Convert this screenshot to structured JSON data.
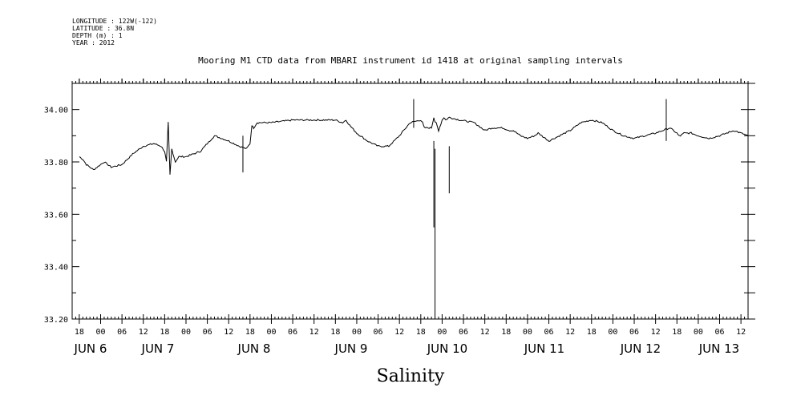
{
  "meta": {
    "longitude": "LONGITUDE : 122W(-122)",
    "latitude": "LATITUDE : 36.8N",
    "depth": "DEPTH (m) : 1",
    "year": "YEAR : 2012"
  },
  "chart_data": {
    "type": "line",
    "title": "Mooring M1 CTD data from MBARI instrument id 1418 at original sampling intervals",
    "xlabel": "Salinity",
    "ylabel": "",
    "ylim": [
      33.2,
      34.1
    ],
    "xlim_hours_from_jun6_00": [
      -8,
      182
    ],
    "y_ticks": [
      "33.20",
      "33.40",
      "33.60",
      "33.80",
      "34.00"
    ],
    "hour_tick_labels": [
      "18",
      "00",
      "06",
      "12",
      "18",
      "00",
      "06",
      "12",
      "18",
      "00",
      "06",
      "12",
      "18",
      "00",
      "06",
      "12",
      "18",
      "00",
      "06",
      "12",
      "18",
      "00",
      "06",
      "12",
      "18",
      "00",
      "06",
      "12",
      "18",
      "00",
      "06",
      "12"
    ],
    "day_labels": [
      "JUN  6",
      "JUN  7",
      "JUN  8",
      "JUN  9",
      "JUN 10",
      "JUN 11",
      "JUN 12",
      "JUN 13"
    ],
    "grid": false,
    "series": [
      {
        "x_dates": [
          "2012-06-05T18:00",
          "2012-06-05T19:00",
          "2012-06-05T20:00",
          "2012-06-05T21:00",
          "2012-06-05T22:00",
          "2012-06-05T23:00",
          "2012-06-06T00:00",
          "2012-06-06T01:00",
          "2012-06-06T02:00",
          "2012-06-06T03:00",
          "2012-06-06T06:00",
          "2012-06-06T09:00",
          "2012-06-06T12:00",
          "2012-06-06T15:00",
          "2012-06-06T17:00",
          "2012-06-06T18:00",
          "2012-06-06T18:30",
          "2012-06-06T19:00",
          "2012-06-06T19:30",
          "2012-06-06T20:00",
          "2012-06-06T21:00",
          "2012-06-06T22:00",
          "2012-06-07T00:00",
          "2012-06-07T04:00",
          "2012-06-07T06:00",
          "2012-06-07T08:00",
          "2012-06-07T10:00",
          "2012-06-07T12:00",
          "2012-06-07T15:00",
          "2012-06-07T17:00",
          "2012-06-07T18:00",
          "2012-06-07T18:30",
          "2012-06-07T19:00",
          "2012-06-07T20:00",
          "2012-06-08T00:00",
          "2012-06-08T06:00",
          "2012-06-08T12:00",
          "2012-06-08T17:00",
          "2012-06-08T18:00",
          "2012-06-08T20:00",
          "2012-06-08T21:00",
          "2012-06-08T22:00",
          "2012-06-09T00:00",
          "2012-06-09T03:00",
          "2012-06-09T06:00",
          "2012-06-09T09:00",
          "2012-06-09T12:00",
          "2012-06-09T15:00",
          "2012-06-09T18:00",
          "2012-06-09T18:30",
          "2012-06-09T19:00",
          "2012-06-09T21:00",
          "2012-06-09T21:20",
          "2012-06-09T21:40",
          "2012-06-09T22:00",
          "2012-06-09T22:20",
          "2012-06-09T23:00",
          "2012-06-10T00:00",
          "2012-06-10T00:30",
          "2012-06-10T01:00",
          "2012-06-10T02:00",
          "2012-06-10T05:00",
          "2012-06-10T09:00",
          "2012-06-10T12:00",
          "2012-06-10T14:00",
          "2012-06-10T15:00",
          "2012-06-10T16:00",
          "2012-06-10T17:00",
          "2012-06-10T19:00",
          "2012-06-10T20:00",
          "2012-06-10T21:00",
          "2012-06-10T22:00",
          "2012-06-11T00:00",
          "2012-06-11T02:00",
          "2012-06-11T03:00",
          "2012-06-11T04:00",
          "2012-06-11T06:00",
          "2012-06-11T09:00",
          "2012-06-11T12:00",
          "2012-06-11T15:00",
          "2012-06-11T18:00",
          "2012-06-11T21:00",
          "2012-06-12T00:00",
          "2012-06-12T03:00",
          "2012-06-12T06:00",
          "2012-06-12T09:00",
          "2012-06-12T12:00",
          "2012-06-12T14:00",
          "2012-06-12T16:00",
          "2012-06-12T17:00",
          "2012-06-12T18:00",
          "2012-06-12T18:30",
          "2012-06-12T19:00",
          "2012-06-12T20:00",
          "2012-06-12T22:00",
          "2012-06-13T00:00",
          "2012-06-13T03:00",
          "2012-06-13T06:00",
          "2012-06-13T08:00",
          "2012-06-13T10:00",
          "2012-06-13T12:00",
          "2012-06-13T14:00"
        ],
        "values": [
          33.82,
          33.81,
          33.79,
          33.78,
          33.77,
          33.78,
          33.79,
          33.8,
          33.79,
          33.78,
          33.79,
          33.83,
          33.86,
          33.87,
          33.86,
          33.84,
          33.8,
          33.95,
          33.75,
          33.85,
          33.8,
          33.82,
          33.82,
          33.84,
          33.87,
          33.9,
          33.89,
          33.88,
          33.86,
          33.85,
          33.87,
          33.94,
          33.93,
          33.95,
          33.95,
          33.96,
          33.96,
          33.96,
          33.96,
          33.95,
          33.96,
          33.94,
          33.91,
          33.88,
          33.86,
          33.86,
          33.9,
          33.95,
          33.96,
          33.95,
          33.93,
          33.93,
          33.95,
          33.97,
          33.95,
          33.95,
          33.92,
          33.96,
          33.97,
          33.96,
          33.97,
          33.96,
          33.95,
          33.92,
          33.93,
          33.93,
          33.93,
          33.93,
          33.92,
          33.92,
          33.91,
          33.9,
          33.89,
          33.9,
          33.91,
          33.9,
          33.88,
          33.9,
          33.92,
          33.95,
          33.96,
          33.95,
          33.92,
          33.9,
          33.89,
          33.9,
          33.91,
          33.92,
          33.93,
          33.92,
          33.91,
          33.9,
          33.9,
          33.91,
          33.91,
          33.9,
          33.89,
          33.9,
          33.91,
          33.92,
          33.91,
          33.9
        ]
      }
    ]
  }
}
